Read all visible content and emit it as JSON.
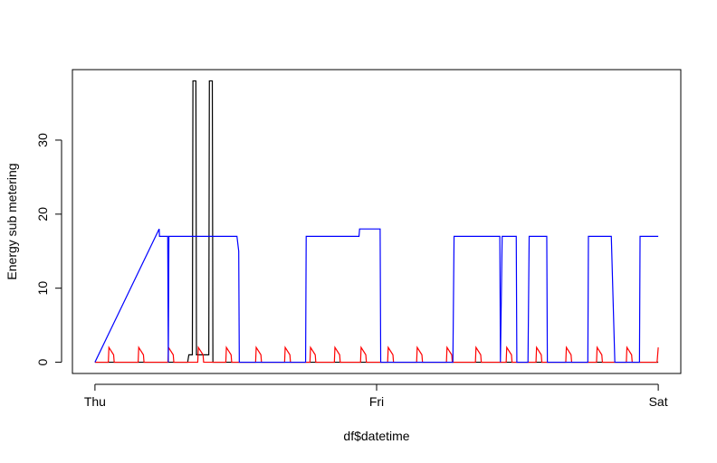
{
  "chart_data": {
    "type": "line",
    "xlabel": "df$datetime",
    "ylabel": "Energy sub metering",
    "xlim": [
      -1.92,
      49.92
    ],
    "ylim": [
      -1.52,
      39.52
    ],
    "xticks": [
      {
        "value": 0,
        "label": "Thu"
      },
      {
        "value": 24,
        "label": "Fri"
      },
      {
        "value": 48,
        "label": "Sat"
      }
    ],
    "yticks": [
      0,
      10,
      20,
      30
    ],
    "series": [
      {
        "color": "#000000",
        "x": [
          0,
          7.9,
          8.0,
          8.3,
          8.35,
          8.6,
          8.65,
          9.0,
          9.7,
          9.75,
          10.0,
          10.05,
          48
        ],
        "values": [
          0,
          0,
          1,
          1,
          38,
          38,
          1,
          1,
          1,
          38,
          38,
          0,
          0
        ]
      },
      {
        "color": "#ff0000",
        "x": [
          0,
          1.14,
          1.19,
          1.59,
          1.64,
          3.68,
          3.73,
          4.13,
          4.18,
          6.22,
          6.27,
          6.67,
          6.72,
          8.76,
          8.81,
          9.21,
          9.26,
          11.15,
          11.2,
          11.6,
          11.65,
          13.69,
          13.74,
          14.14,
          14.19,
          16.16,
          16.21,
          16.61,
          16.66,
          18.32,
          18.37,
          18.77,
          18.82,
          20.4,
          20.45,
          20.85,
          20.9,
          22.63,
          22.68,
          23.08,
          23.13,
          24.94,
          24.99,
          25.39,
          25.44,
          27.41,
          27.46,
          27.86,
          27.91,
          29.95,
          30,
          30.4,
          30.45,
          32.42,
          32.47,
          32.87,
          32.92,
          35.04,
          35.09,
          35.49,
          35.54,
          37.58,
          37.63,
          38.03,
          38.08,
          40.12,
          40.17,
          40.57,
          40.62,
          42.74,
          42.79,
          43.19,
          43.24,
          45.28,
          45.33,
          45.73,
          45.78,
          47.9,
          48
        ],
        "values": [
          0,
          0,
          2,
          1,
          0,
          0,
          2,
          1,
          0,
          0,
          2,
          1,
          0,
          0,
          2,
          1,
          0,
          0,
          2,
          1,
          0,
          0,
          2,
          1,
          0,
          0,
          2,
          1,
          0,
          0,
          2,
          1,
          0,
          0,
          2,
          1,
          0,
          0,
          2,
          1,
          0,
          0,
          2,
          1,
          0,
          0,
          2,
          1,
          0,
          0,
          2,
          1,
          0,
          0,
          2,
          1,
          0,
          0,
          2,
          1,
          0,
          0,
          2,
          1,
          0,
          0,
          2,
          1,
          0,
          0,
          2,
          1,
          0,
          0,
          2,
          1,
          0,
          0,
          2
        ]
      },
      {
        "color": "#0000ff",
        "x": [
          0,
          5.47,
          5.5,
          6.2,
          6.25,
          6.3,
          6.35,
          12.1,
          12.25,
          12.3,
          17.95,
          18.0,
          22.5,
          22.55,
          24.3,
          24.35,
          30.5,
          30.6,
          34.5,
          34.55,
          34.7,
          34.75,
          35.9,
          35.95,
          36.9,
          37.0,
          38.5,
          38.55,
          42.0,
          42.05,
          44.0,
          44.3,
          46.4,
          46.45,
          48
        ],
        "values": [
          0,
          18,
          17,
          17,
          0,
          17,
          17,
          17,
          15,
          0,
          0,
          17,
          17,
          18,
          18,
          0,
          0,
          17,
          17,
          0,
          17,
          17,
          17,
          0,
          0,
          17,
          17,
          0,
          0,
          17,
          17,
          0,
          0,
          17,
          17
        ]
      }
    ]
  }
}
